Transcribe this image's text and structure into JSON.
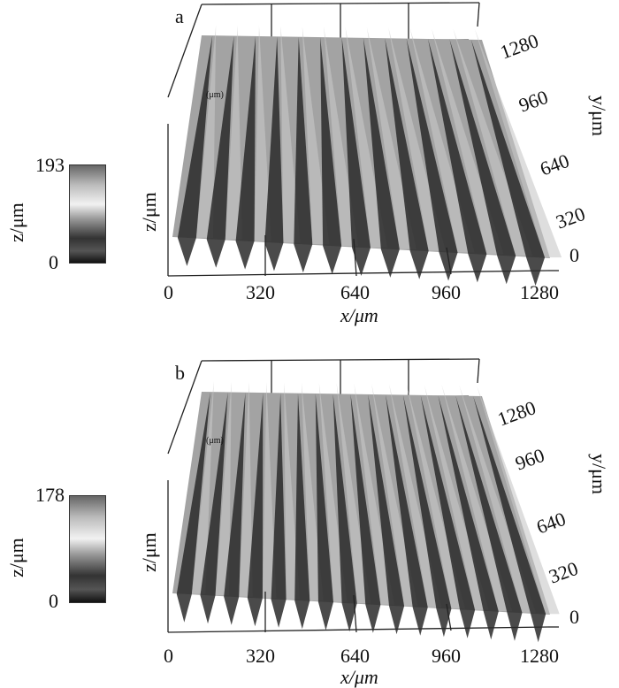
{
  "chart_data": [
    {
      "type": "surface",
      "panel_label": "a",
      "xlabel": "x/μm",
      "ylabel": "y/μm",
      "zlabel": "z/μm",
      "unit_label": "(μm)",
      "x_ticks": [
        "0",
        "320",
        "640",
        "960",
        "1280"
      ],
      "y_ticks": [
        "0",
        "320",
        "640",
        "960",
        "1280"
      ],
      "xlim": [
        0,
        1280
      ],
      "ylim": [
        0,
        1280
      ],
      "zlim": [
        0,
        193
      ],
      "colorbar": {
        "max": "193",
        "min": "0",
        "label": "z/μm"
      },
      "ridge_count": 13,
      "colormap": "grayscale"
    },
    {
      "type": "surface",
      "panel_label": "b",
      "xlabel": "x/μm",
      "ylabel": "y/μm",
      "zlabel": "z/μm",
      "unit_label": "(μm)",
      "x_ticks": [
        "0",
        "320",
        "640",
        "960",
        "1280"
      ],
      "y_ticks": [
        "0",
        "320",
        "640",
        "960",
        "1280"
      ],
      "xlim": [
        0,
        1280
      ],
      "ylim": [
        0,
        1280
      ],
      "zlim": [
        0,
        178
      ],
      "colorbar": {
        "max": "178",
        "min": "0",
        "label": "z/μm"
      },
      "ridge_count": 16,
      "colormap": "grayscale"
    }
  ]
}
